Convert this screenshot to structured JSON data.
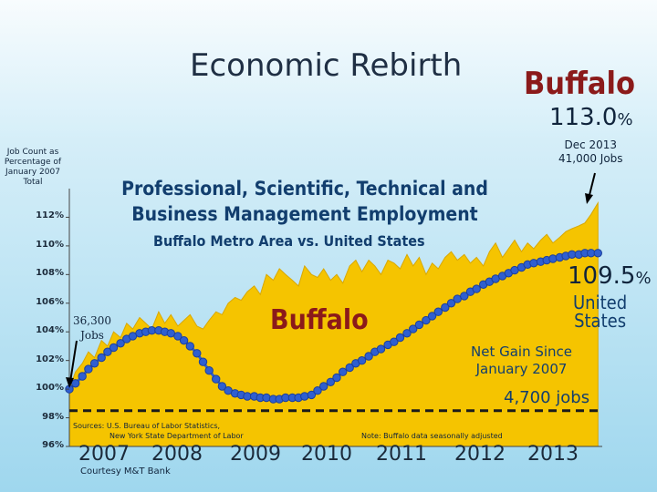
{
  "slide": {
    "title": "Economic Rebirth",
    "city": "Buffalo",
    "buffalo_pct_value": "113.0",
    "buffalo_pct_unit": "%",
    "buffalo_end_date": "Dec 2013",
    "buffalo_end_jobs": "41,000 Jobs",
    "us_pct_value": "109.5",
    "us_pct_unit": "%",
    "us_label_line1": "United",
    "us_label_line2": "States",
    "buffalo_chart_label": "Buffalo",
    "start_jobs": "36,300",
    "start_jobs_unit": "Jobs",
    "gain_line1": "Net Gain Since",
    "gain_line2": "January 2007",
    "gain_value": "4,700 jobs",
    "sources_line1": "Sources: U.S. Bureau of Labor Statistics,",
    "sources_line2": "New York State Department of Labor",
    "note": "Note:    Buffalo data seasonally adjusted",
    "courtesy": "Courtesy M&T Bank"
  },
  "chart_data": {
    "type": "area",
    "title": "Professional, Scientific, Technical and Business Management Employment",
    "subtitle": "Buffalo Metro Area vs. United States",
    "ylabel": "Job Count as Percentage of January 2007 Total",
    "ylim": [
      96,
      114
    ],
    "yticks": [
      "96%",
      "98%",
      "100%",
      "102%",
      "104%",
      "106%",
      "108%",
      "110%",
      "112%"
    ],
    "x_tick_labels": [
      "2007",
      "2008",
      "2009",
      "2010",
      "2011",
      "2012",
      "2013"
    ],
    "x_range": [
      2007.0,
      2014.0
    ],
    "grid": false,
    "series": [
      {
        "name": "Buffalo",
        "style": "area",
        "color": "#f5c400",
        "x": [
          2007.0,
          2007.08,
          2007.17,
          2007.25,
          2007.33,
          2007.42,
          2007.5,
          2007.58,
          2007.67,
          2007.75,
          2007.83,
          2007.92,
          2008.0,
          2008.08,
          2008.17,
          2008.25,
          2008.33,
          2008.42,
          2008.5,
          2008.58,
          2008.67,
          2008.75,
          2008.83,
          2008.92,
          2009.0,
          2009.08,
          2009.17,
          2009.25,
          2009.33,
          2009.42,
          2009.5,
          2009.58,
          2009.67,
          2009.75,
          2009.83,
          2009.92,
          2010.0,
          2010.08,
          2010.17,
          2010.25,
          2010.33,
          2010.42,
          2010.5,
          2010.58,
          2010.67,
          2010.75,
          2010.83,
          2010.92,
          2011.0,
          2011.08,
          2011.17,
          2011.25,
          2011.33,
          2011.42,
          2011.5,
          2011.58,
          2011.67,
          2011.75,
          2011.83,
          2011.92,
          2012.0,
          2012.08,
          2012.17,
          2012.25,
          2012.33,
          2012.42,
          2012.5,
          2012.58,
          2012.67,
          2012.75,
          2012.83,
          2012.92,
          2013.0,
          2013.08,
          2013.17,
          2013.25,
          2013.33,
          2013.42,
          2013.5,
          2013.58,
          2013.67,
          2013.75,
          2013.83,
          2013.92
        ],
        "values": [
          100.0,
          101.2,
          101.8,
          102.6,
          102.2,
          103.4,
          103.0,
          104.0,
          103.6,
          104.6,
          104.2,
          105.0,
          104.6,
          104.2,
          105.4,
          104.6,
          105.2,
          104.4,
          104.8,
          105.2,
          104.4,
          104.2,
          104.8,
          105.4,
          105.2,
          106.0,
          106.4,
          106.2,
          106.8,
          107.2,
          106.6,
          108.0,
          107.6,
          108.4,
          108.0,
          107.6,
          107.2,
          108.6,
          108.0,
          107.8,
          108.4,
          107.6,
          108.0,
          107.4,
          108.6,
          109.0,
          108.2,
          109.0,
          108.6,
          108.0,
          109.0,
          108.8,
          108.4,
          109.4,
          108.6,
          109.2,
          108.0,
          108.8,
          108.4,
          109.2,
          109.6,
          109.0,
          109.4,
          108.8,
          109.2,
          108.6,
          109.6,
          110.2,
          109.2,
          109.8,
          110.4,
          109.6,
          110.2,
          109.8,
          110.4,
          110.8,
          110.2,
          110.6,
          111.0,
          111.2,
          111.4,
          111.6,
          112.2,
          113.0
        ]
      },
      {
        "name": "United States",
        "style": "line-dots",
        "color": "#2f5fd0",
        "x": [
          2007.0,
          2007.08,
          2007.17,
          2007.25,
          2007.33,
          2007.42,
          2007.5,
          2007.58,
          2007.67,
          2007.75,
          2007.83,
          2007.92,
          2008.0,
          2008.08,
          2008.17,
          2008.25,
          2008.33,
          2008.42,
          2008.5,
          2008.58,
          2008.67,
          2008.75,
          2008.83,
          2008.92,
          2009.0,
          2009.08,
          2009.17,
          2009.25,
          2009.33,
          2009.42,
          2009.5,
          2009.58,
          2009.67,
          2009.75,
          2009.83,
          2009.92,
          2010.0,
          2010.08,
          2010.17,
          2010.25,
          2010.33,
          2010.42,
          2010.5,
          2010.58,
          2010.67,
          2010.75,
          2010.83,
          2010.92,
          2011.0,
          2011.08,
          2011.17,
          2011.25,
          2011.33,
          2011.42,
          2011.5,
          2011.58,
          2011.67,
          2011.75,
          2011.83,
          2011.92,
          2012.0,
          2012.08,
          2012.17,
          2012.25,
          2012.33,
          2012.42,
          2012.5,
          2012.58,
          2012.67,
          2012.75,
          2012.83,
          2012.92,
          2013.0,
          2013.08,
          2013.17,
          2013.25,
          2013.33,
          2013.42,
          2013.5,
          2013.58,
          2013.67,
          2013.75,
          2013.83,
          2013.92
        ],
        "values": [
          100.0,
          100.4,
          100.9,
          101.4,
          101.8,
          102.2,
          102.6,
          102.9,
          103.2,
          103.5,
          103.7,
          103.9,
          104.0,
          104.1,
          104.1,
          104.0,
          103.9,
          103.7,
          103.4,
          103.0,
          102.5,
          101.9,
          101.3,
          100.7,
          100.2,
          99.9,
          99.7,
          99.6,
          99.5,
          99.5,
          99.4,
          99.4,
          99.3,
          99.3,
          99.4,
          99.4,
          99.4,
          99.5,
          99.6,
          99.9,
          100.2,
          100.5,
          100.8,
          101.2,
          101.5,
          101.8,
          102.0,
          102.3,
          102.6,
          102.8,
          103.1,
          103.3,
          103.6,
          103.9,
          104.2,
          104.5,
          104.8,
          105.1,
          105.4,
          105.7,
          106.0,
          106.3,
          106.5,
          106.8,
          107.0,
          107.3,
          107.5,
          107.7,
          107.9,
          108.1,
          108.3,
          108.5,
          108.7,
          108.8,
          108.9,
          109.0,
          109.1,
          109.2,
          109.3,
          109.4,
          109.4,
          109.5,
          109.5,
          109.5
        ]
      }
    ],
    "reference_line": {
      "value": 98.5,
      "style": "dashed"
    }
  }
}
